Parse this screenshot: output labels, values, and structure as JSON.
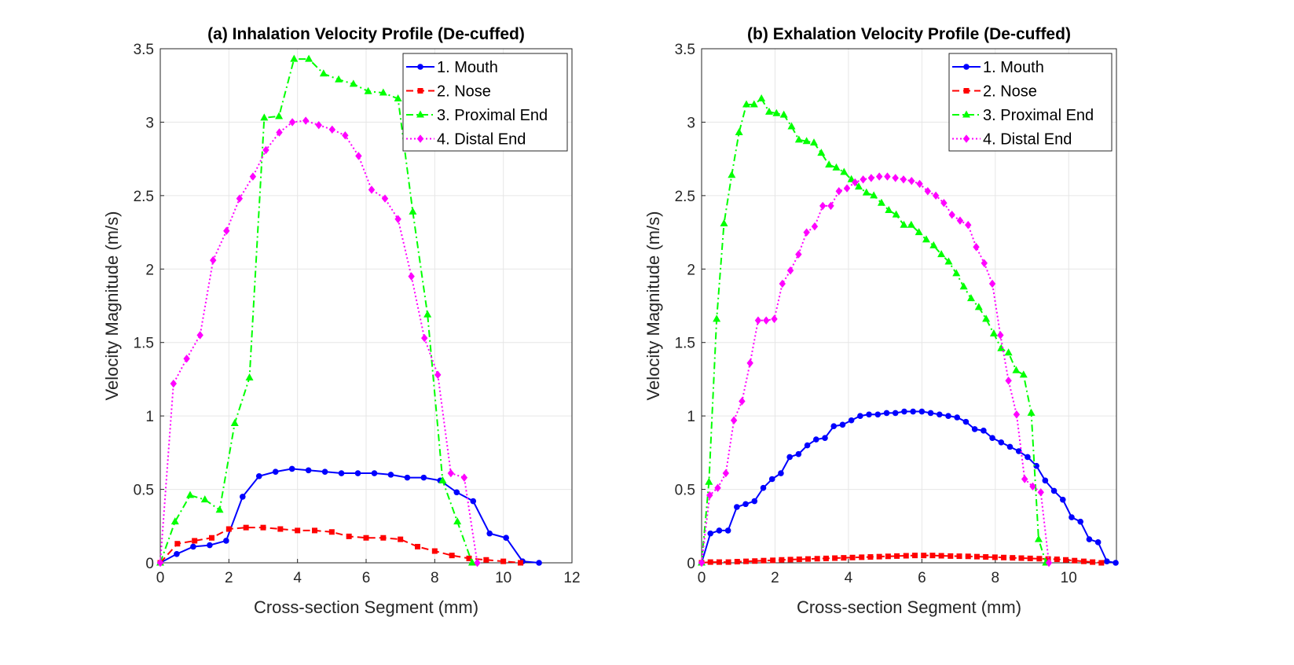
{
  "chart_data": [
    {
      "type": "line",
      "title": "(a) Inhalation Velocity Profile (De-cuffed)",
      "xlabel": "Cross-section Segment (mm)",
      "ylabel": "Velocity Magnitude (m/s)",
      "xlim": [
        0,
        12
      ],
      "ylim": [
        0,
        3.5
      ],
      "xticks": [
        0,
        2,
        4,
        6,
        8,
        10,
        12
      ],
      "yticks": [
        0,
        0.5,
        1,
        1.5,
        2,
        2.5,
        3,
        3.5
      ],
      "grid": true,
      "legend_position": "top-right",
      "series": [
        {
          "name": "1. Mouth",
          "color": "#0000ff",
          "line": "solid",
          "marker": "circle",
          "x": [
            0,
            0.48,
            0.96,
            1.44,
            1.92,
            2.4,
            2.88,
            3.36,
            3.84,
            4.32,
            4.8,
            5.28,
            5.76,
            6.24,
            6.72,
            7.2,
            7.68,
            8.16,
            8.64,
            9.12,
            9.6,
            10.08,
            10.56,
            11.04
          ],
          "y": [
            0,
            0.06,
            0.11,
            0.12,
            0.15,
            0.45,
            0.59,
            0.62,
            0.64,
            0.63,
            0.62,
            0.61,
            0.61,
            0.61,
            0.6,
            0.58,
            0.58,
            0.56,
            0.48,
            0.42,
            0.2,
            0.17,
            0.01,
            0.0
          ]
        },
        {
          "name": "2. Nose",
          "color": "#ff0000",
          "line": "dashed",
          "marker": "square",
          "x": [
            0,
            0.5,
            1,
            1.5,
            2,
            2.5,
            3,
            3.5,
            4,
            4.5,
            5,
            5.5,
            6,
            6.5,
            7,
            7.5,
            8,
            8.5,
            9,
            9.5,
            10,
            10.5
          ],
          "y": [
            0,
            0.13,
            0.15,
            0.17,
            0.23,
            0.24,
            0.24,
            0.23,
            0.22,
            0.22,
            0.21,
            0.18,
            0.17,
            0.17,
            0.16,
            0.11,
            0.08,
            0.05,
            0.03,
            0.02,
            0.01,
            0.0
          ]
        },
        {
          "name": "3. Proximal End",
          "color": "#00ff00",
          "line": "dashdot",
          "marker": "triangle",
          "x": [
            0,
            0.43,
            0.87,
            1.3,
            1.73,
            2.17,
            2.6,
            3.03,
            3.46,
            3.9,
            4.33,
            4.76,
            5.2,
            5.63,
            6.06,
            6.5,
            6.93,
            7.36,
            7.79,
            8.23,
            8.66,
            9.09
          ],
          "y": [
            0,
            0.28,
            0.46,
            0.43,
            0.36,
            0.95,
            1.26,
            3.03,
            3.04,
            3.43,
            3.43,
            3.33,
            3.29,
            3.26,
            3.21,
            3.2,
            3.16,
            2.39,
            1.69,
            0.56,
            0.28,
            0.0
          ]
        },
        {
          "name": "4. Distal End",
          "color": "#ff00ff",
          "line": "dotted",
          "marker": "diamond",
          "x": [
            0,
            0.385,
            0.77,
            1.16,
            1.54,
            1.93,
            2.31,
            2.7,
            3.08,
            3.47,
            3.85,
            4.24,
            4.62,
            5.01,
            5.39,
            5.78,
            6.16,
            6.55,
            6.93,
            7.32,
            7.7,
            8.09,
            8.47,
            8.86,
            9.24
          ],
          "y": [
            0,
            1.22,
            1.39,
            1.55,
            2.06,
            2.26,
            2.48,
            2.63,
            2.81,
            2.93,
            3.0,
            3.01,
            2.98,
            2.95,
            2.91,
            2.77,
            2.54,
            2.48,
            2.34,
            1.95,
            1.53,
            1.28,
            0.61,
            0.58,
            0.0
          ]
        }
      ]
    },
    {
      "type": "line",
      "title": "(b) Exhalation Velocity Profile (De-cuffed)",
      "xlabel": "Cross-section Segment (mm)",
      "ylabel": "Velocity Magnitude (m/s)",
      "xlim": [
        0,
        11.3
      ],
      "ylim": [
        0,
        3.5
      ],
      "xticks": [
        0,
        2,
        4,
        6,
        8,
        10
      ],
      "yticks": [
        0,
        0.5,
        1,
        1.5,
        2,
        2.5,
        3,
        3.5
      ],
      "grid": true,
      "legend_position": "top-right",
      "series": [
        {
          "name": "1. Mouth",
          "color": "#0000ff",
          "line": "solid",
          "marker": "circle",
          "x": [
            0,
            0.24,
            0.48,
            0.72,
            0.96,
            1.2,
            1.44,
            1.68,
            1.92,
            2.16,
            2.4,
            2.64,
            2.88,
            3.12,
            3.36,
            3.6,
            3.84,
            4.08,
            4.32,
            4.56,
            4.8,
            5.04,
            5.28,
            5.52,
            5.76,
            6,
            6.24,
            6.48,
            6.72,
            6.96,
            7.2,
            7.44,
            7.68,
            7.92,
            8.16,
            8.4,
            8.64,
            8.88,
            9.12,
            9.36,
            9.6,
            9.84,
            10.08,
            10.32,
            10.56,
            10.8,
            11.04,
            11.28
          ],
          "y": [
            0,
            0.2,
            0.22,
            0.22,
            0.38,
            0.4,
            0.42,
            0.51,
            0.57,
            0.61,
            0.72,
            0.74,
            0.8,
            0.84,
            0.85,
            0.93,
            0.94,
            0.97,
            1.0,
            1.01,
            1.01,
            1.02,
            1.02,
            1.03,
            1.03,
            1.03,
            1.02,
            1.01,
            1.0,
            0.99,
            0.96,
            0.91,
            0.9,
            0.85,
            0.82,
            0.79,
            0.76,
            0.72,
            0.66,
            0.56,
            0.49,
            0.43,
            0.31,
            0.28,
            0.16,
            0.14,
            0.01,
            0.0
          ]
        },
        {
          "name": "2. Nose",
          "color": "#ff0000",
          "line": "dashed",
          "marker": "square",
          "x": [
            0,
            0.24,
            0.48,
            0.73,
            0.97,
            1.21,
            1.45,
            1.69,
            1.94,
            2.18,
            2.42,
            2.66,
            2.9,
            3.15,
            3.39,
            3.63,
            3.87,
            4.11,
            4.36,
            4.6,
            4.84,
            5.08,
            5.32,
            5.57,
            5.81,
            6.05,
            6.29,
            6.53,
            6.78,
            7.02,
            7.26,
            7.5,
            7.74,
            7.99,
            8.23,
            8.47,
            8.71,
            8.95,
            9.2,
            9.44,
            9.68,
            9.92,
            10.16,
            10.41,
            10.65,
            10.89
          ],
          "y": [
            0,
            0.005,
            0.005,
            0.005,
            0.008,
            0.01,
            0.012,
            0.015,
            0.017,
            0.02,
            0.022,
            0.024,
            0.026,
            0.028,
            0.03,
            0.032,
            0.034,
            0.036,
            0.038,
            0.04,
            0.042,
            0.044,
            0.046,
            0.048,
            0.05,
            0.05,
            0.05,
            0.048,
            0.046,
            0.045,
            0.044,
            0.042,
            0.04,
            0.038,
            0.036,
            0.034,
            0.032,
            0.03,
            0.028,
            0.026,
            0.024,
            0.02,
            0.015,
            0.01,
            0.005,
            0.0
          ]
        },
        {
          "name": "3. Proximal End",
          "color": "#00ff00",
          "line": "dashdot",
          "marker": "triangle",
          "x": [
            0,
            0.2,
            0.41,
            0.61,
            0.82,
            1.02,
            1.22,
            1.43,
            1.63,
            1.84,
            2.04,
            2.24,
            2.45,
            2.65,
            2.86,
            3.06,
            3.26,
            3.47,
            3.67,
            3.88,
            4.08,
            4.28,
            4.49,
            4.69,
            4.9,
            5.1,
            5.3,
            5.51,
            5.71,
            5.92,
            6.12,
            6.32,
            6.53,
            6.73,
            6.94,
            7.14,
            7.34,
            7.55,
            7.75,
            7.96,
            8.16,
            8.36,
            8.57,
            8.77,
            8.98,
            9.18,
            9.38
          ],
          "y": [
            0,
            0.55,
            1.66,
            2.31,
            2.64,
            2.93,
            3.12,
            3.12,
            3.16,
            3.07,
            3.06,
            3.05,
            2.97,
            2.88,
            2.87,
            2.86,
            2.79,
            2.71,
            2.69,
            2.66,
            2.61,
            2.56,
            2.52,
            2.5,
            2.45,
            2.4,
            2.37,
            2.3,
            2.3,
            2.25,
            2.2,
            2.16,
            2.1,
            2.05,
            1.97,
            1.88,
            1.8,
            1.74,
            1.66,
            1.56,
            1.46,
            1.43,
            1.31,
            1.28,
            1.02,
            0.16,
            0.0
          ]
        },
        {
          "name": "4. Distal End",
          "color": "#ff00ff",
          "line": "dotted",
          "marker": "diamond",
          "x": [
            0,
            0.22,
            0.44,
            0.66,
            0.88,
            1.1,
            1.32,
            1.54,
            1.76,
            1.98,
            2.2,
            2.42,
            2.64,
            2.86,
            3.08,
            3.3,
            3.52,
            3.74,
            3.96,
            4.18,
            4.4,
            4.62,
            4.84,
            5.06,
            5.28,
            5.5,
            5.72,
            5.94,
            6.16,
            6.38,
            6.6,
            6.82,
            7.04,
            7.26,
            7.48,
            7.7,
            7.92,
            8.14,
            8.36,
            8.58,
            8.8,
            9.02,
            9.24,
            9.46
          ],
          "y": [
            0,
            0.46,
            0.51,
            0.61,
            0.97,
            1.1,
            1.36,
            1.65,
            1.65,
            1.66,
            1.9,
            1.99,
            2.1,
            2.25,
            2.29,
            2.43,
            2.43,
            2.53,
            2.55,
            2.59,
            2.61,
            2.62,
            2.63,
            2.63,
            2.62,
            2.61,
            2.6,
            2.58,
            2.53,
            2.5,
            2.45,
            2.37,
            2.33,
            2.3,
            2.15,
            2.04,
            1.9,
            1.55,
            1.24,
            1.01,
            0.57,
            0.52,
            0.48,
            0.0
          ]
        }
      ]
    }
  ]
}
